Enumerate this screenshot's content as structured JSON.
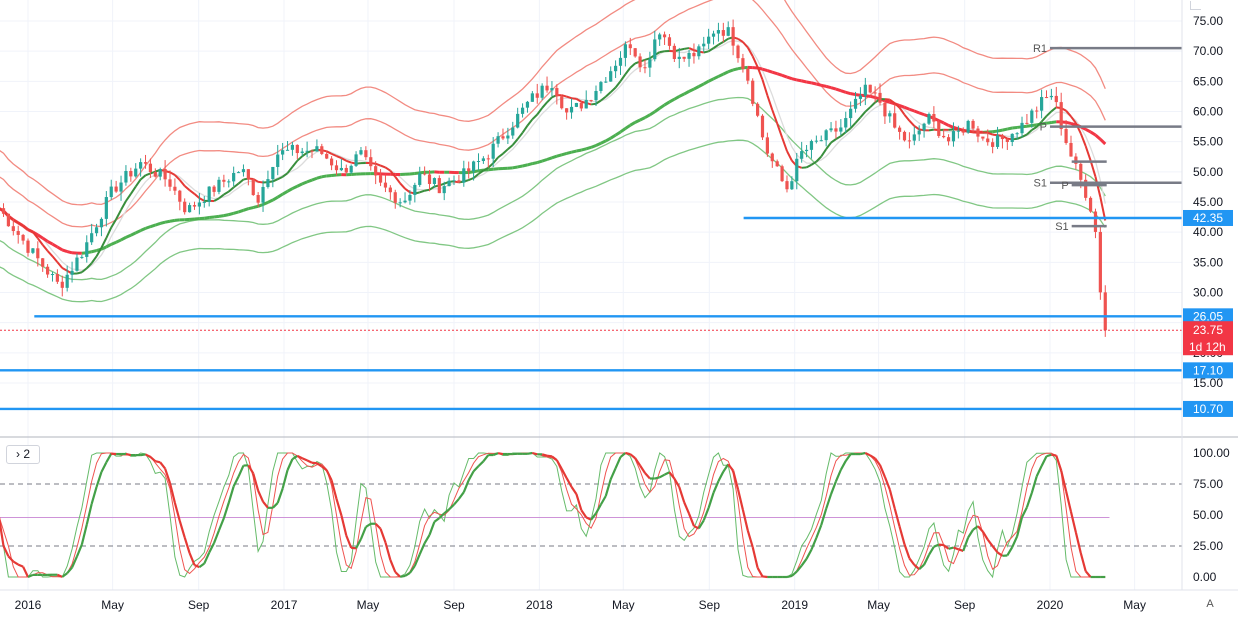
{
  "chart_data": {
    "type": "candlestick",
    "instrument_timeframe": "weekly",
    "price_axis": {
      "ticks": [
        15,
        20,
        25,
        30,
        35,
        40,
        45,
        50,
        55,
        60,
        65,
        70,
        75
      ],
      "tick_labels": [
        "15.00",
        "20.00",
        "25.00",
        "30.00",
        "35.00",
        "40.00",
        "45.00",
        "50.00",
        "55.00",
        "60.00",
        "65.00",
        "70.00",
        "75.00"
      ]
    },
    "time_axis": {
      "labels": [
        "2016",
        "May",
        "Sep",
        "2017",
        "May",
        "Sep",
        "2018",
        "May",
        "Sep",
        "2019",
        "May",
        "Sep",
        "2020",
        "May"
      ],
      "dates": [
        "2016-01-01",
        "2016-05-01",
        "2016-09-01",
        "2017-01-01",
        "2017-05-01",
        "2017-09-01",
        "2018-01-01",
        "2018-05-01",
        "2018-09-01",
        "2019-01-01",
        "2019-05-01",
        "2019-09-01",
        "2020-01-01",
        "2020-05-01"
      ]
    },
    "horizontal_levels": [
      {
        "value": 42.35,
        "label": "42.35",
        "color": "#2196f3",
        "start": "2018-10-20"
      },
      {
        "value": 26.05,
        "label": "26.05",
        "color": "#2196f3",
        "start": "2016-01-10"
      },
      {
        "value": 17.1,
        "label": "17.10",
        "color": "#2196f3",
        "start": "2015-11-20"
      },
      {
        "value": 10.7,
        "label": "10.70",
        "color": "#2196f3",
        "start": "2015-11-20"
      }
    ],
    "last_price": {
      "value": 23.75,
      "label": "23.75",
      "countdown": "1d 12h",
      "color": "#f23645"
    },
    "pivot_levels": [
      {
        "label": "R1",
        "value": 70.5,
        "start": "2020-01-01",
        "color": "#787b86"
      },
      {
        "label": "P",
        "value": 57.5,
        "start": "2020-01-01",
        "color": "#787b86"
      },
      {
        "label": "S1",
        "value": 48.2,
        "start": "2020-01-01",
        "color": "#787b86"
      },
      {
        "label": "",
        "value": 51.7,
        "start": "2020-02-01",
        "color": "#787b86"
      },
      {
        "label": "P",
        "value": 47.8,
        "start": "2020-02-01",
        "color": "#787b86"
      },
      {
        "label": "S1",
        "value": 41.0,
        "start": "2020-02-01",
        "color": "#787b86"
      }
    ],
    "ohlc_weekly_closes_approx": [
      [
        "2015-11-20",
        44.0
      ],
      [
        "2016-01-01",
        37.5
      ],
      [
        "2016-02-15",
        31.0
      ],
      [
        "2016-03-20",
        37.0
      ],
      [
        "2016-05-01",
        47.0
      ],
      [
        "2016-06-10",
        51.5
      ],
      [
        "2016-07-20",
        48.5
      ],
      [
        "2016-08-15",
        43.5
      ],
      [
        "2016-09-20",
        47.0
      ],
      [
        "2016-11-01",
        50.5
      ],
      [
        "2016-11-25",
        45.5
      ],
      [
        "2016-12-20",
        53.0
      ],
      [
        "2017-01-15",
        53.5
      ],
      [
        "2017-02-20",
        53.5
      ],
      [
        "2017-03-25",
        50.0
      ],
      [
        "2017-04-20",
        53.0
      ],
      [
        "2017-05-15",
        48.0
      ],
      [
        "2017-06-20",
        45.0
      ],
      [
        "2017-07-15",
        49.5
      ],
      [
        "2017-08-10",
        47.5
      ],
      [
        "2017-09-15",
        49.5
      ],
      [
        "2017-10-20",
        53.0
      ],
      [
        "2017-11-20",
        57.5
      ],
      [
        "2017-12-20",
        62.0
      ],
      [
        "2018-01-20",
        65.0
      ],
      [
        "2018-02-10",
        59.5
      ],
      [
        "2018-03-10",
        62.0
      ],
      [
        "2018-04-10",
        66.5
      ],
      [
        "2018-05-10",
        71.5
      ],
      [
        "2018-06-01",
        67.0
      ],
      [
        "2018-06-20",
        74.0
      ],
      [
        "2018-07-20",
        68.5
      ],
      [
        "2018-08-20",
        70.0
      ],
      [
        "2018-09-10",
        74.0
      ],
      [
        "2018-10-01",
        73.0
      ],
      [
        "2018-10-25",
        66.0
      ],
      [
        "2018-11-20",
        54.0
      ],
      [
        "2018-12-20",
        47.0
      ],
      [
        "2019-01-10",
        53.0
      ],
      [
        "2019-02-10",
        55.5
      ],
      [
        "2019-03-10",
        57.5
      ],
      [
        "2019-04-10",
        63.5
      ],
      [
        "2019-05-01",
        62.0
      ],
      [
        "2019-05-25",
        57.0
      ],
      [
        "2019-06-15",
        54.5
      ],
      [
        "2019-07-10",
        59.0
      ],
      [
        "2019-08-10",
        55.0
      ],
      [
        "2019-09-10",
        58.5
      ],
      [
        "2019-09-25",
        55.5
      ],
      [
        "2019-10-20",
        55.0
      ],
      [
        "2019-11-20",
        57.5
      ],
      [
        "2019-12-20",
        61.5
      ],
      [
        "2020-01-05",
        63.0
      ],
      [
        "2020-01-20",
        56.5
      ],
      [
        "2020-02-05",
        51.0
      ],
      [
        "2020-02-25",
        45.5
      ],
      [
        "2020-03-05",
        41.5
      ],
      [
        "2020-03-12",
        31.5
      ],
      [
        "2020-03-19",
        25.0
      ],
      [
        "2020-03-26",
        23.75
      ]
    ],
    "moving_averages": [
      {
        "name": "",
        "color": "#4caf50",
        "role": "long MA"
      },
      {
        "name": "",
        "color": "#f23645",
        "role": "long MA"
      },
      {
        "name": "",
        "color": "#dcdcdc",
        "role": "mid MA"
      }
    ],
    "envelope_bands": {
      "upper_color": "#f28b82",
      "lower_color": "#81c784"
    },
    "oscillator": {
      "pane_label": "2",
      "ticks": [
        0,
        25,
        50,
        75,
        100
      ],
      "tick_labels": [
        "0.00",
        "25.00",
        "50.00",
        "75.00",
        "100.00"
      ],
      "levels": [
        25,
        48,
        75
      ],
      "type": "stochastic",
      "latest_value": 0.0
    }
  },
  "ui": {
    "pane_toggle_label": "2",
    "auto_scale_label": "A"
  },
  "colors": {
    "up_candle": "#26a69a",
    "down_candle": "#ef5350",
    "level_line": "#2196f3",
    "axis_text": "#131722",
    "grid": "#f0f3fa",
    "last_price": "#f23645"
  }
}
